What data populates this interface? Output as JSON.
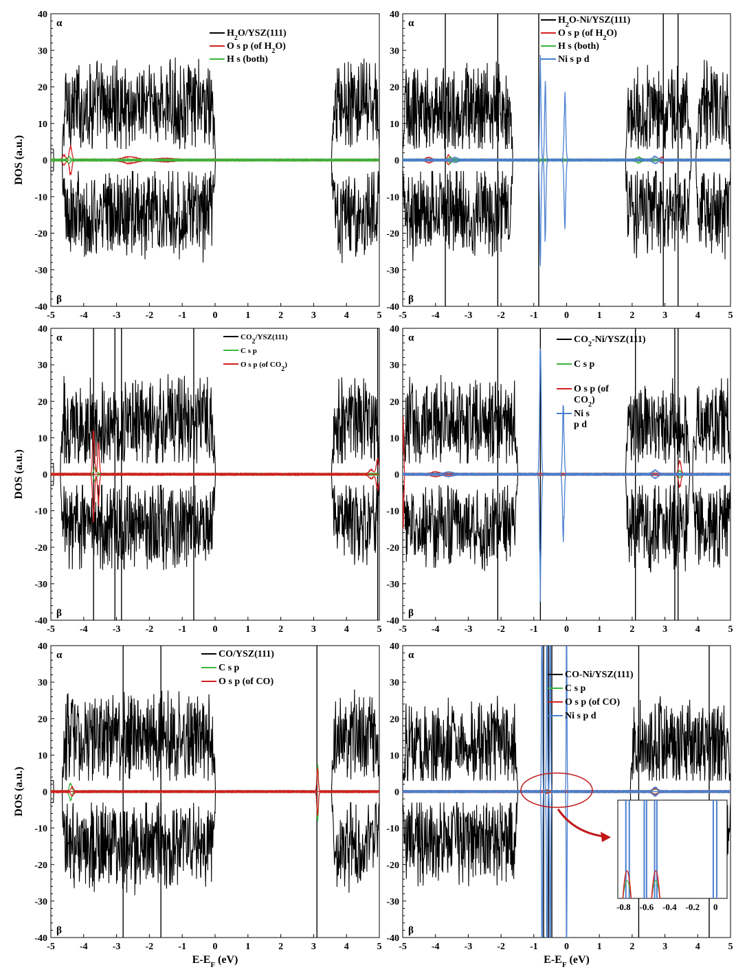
{
  "chart_data": [
    {
      "type": "line",
      "panel": "top-left",
      "xlim": [
        -5,
        5
      ],
      "ylim": [
        -40,
        40
      ],
      "x_ticks": [
        "-5",
        "-4",
        "-3",
        "-2",
        "-1",
        "0",
        "1",
        "2",
        "3",
        "4",
        "5"
      ],
      "y_ticks": [
        "-40",
        "-30",
        "-20",
        "-10",
        "0",
        "10",
        "20",
        "30",
        "40"
      ],
      "ylabel": "DOS (a.u.)",
      "xlabel": "",
      "spin_up_label": "α",
      "spin_down_label": "β",
      "legend_position": "top-right",
      "series": [
        {
          "name": "H2O/YSZ(111)",
          "color": "#000000",
          "kind": "total",
          "bands": [
            [
              -4.65,
              0.0
            ],
            [
              3.55,
              5.0
            ]
          ],
          "amp": 15
        },
        {
          "name": "O s p (of H2O)",
          "color": "#d21f1f",
          "kind": "peaks",
          "peaks": [
            [
              -4.4,
              4.3,
              0.05
            ],
            [
              -4.6,
              1.3,
              0.06
            ],
            [
              -2.6,
              0.8,
              0.25
            ],
            [
              -1.5,
              0.3,
              0.3
            ]
          ]
        },
        {
          "name": "H s (both)",
          "color": "#3cb43c",
          "kind": "peaks",
          "peaks": [
            [
              -4.45,
              0.8,
              0.05
            ]
          ]
        }
      ]
    },
    {
      "type": "line",
      "panel": "top-right",
      "xlim": [
        -5,
        5
      ],
      "ylim": [
        -40,
        40
      ],
      "x_ticks": [
        "-5",
        "-4",
        "-3",
        "-2",
        "-1",
        "0",
        "1",
        "2",
        "3",
        "4",
        "5"
      ],
      "y_ticks": [
        "-40",
        "-30",
        "-20",
        "-10",
        "0",
        "10",
        "20",
        "30",
        "40"
      ],
      "ylabel": "",
      "xlabel": "",
      "spin_up_label": "α",
      "spin_down_label": "β",
      "legend_position": "top-right",
      "series": [
        {
          "name": "H2O-Ni/YSZ(111)",
          "color": "#000000",
          "kind": "total",
          "bands": [
            [
              -5.0,
              -1.65
            ],
            [
              1.8,
              3.8
            ],
            [
              3.95,
              5.0
            ]
          ],
          "amp": 14,
          "spikes": [
            -3.7,
            -2.1,
            -0.85,
            2.95,
            3.4
          ]
        },
        {
          "name": "O s p (of H2O)",
          "color": "#d21f1f",
          "kind": "peaks",
          "peaks": [
            [
              -3.6,
              1.3,
              0.05
            ],
            [
              -4.2,
              0.6,
              0.1
            ],
            [
              2.9,
              0.6,
              0.05
            ]
          ]
        },
        {
          "name": "H s (both)",
          "color": "#3cb43c",
          "kind": "peaks",
          "peaks": [
            [
              -3.55,
              0.8,
              0.05
            ],
            [
              2.2,
              0.6,
              0.1
            ]
          ]
        },
        {
          "name": "Ni s p d",
          "color": "#4a7fcf",
          "kind": "peaks",
          "peaks": [
            [
              -0.8,
              29,
              0.03
            ],
            [
              -0.65,
              24,
              0.03
            ],
            [
              -0.05,
              20,
              0.035
            ],
            [
              -3.4,
              0.5,
              0.1
            ],
            [
              2.7,
              0.8,
              0.1
            ]
          ]
        }
      ]
    },
    {
      "type": "line",
      "panel": "middle-left",
      "xlim": [
        -5,
        5
      ],
      "ylim": [
        -40,
        40
      ],
      "x_ticks": [
        "-5",
        "-4",
        "-3",
        "-2",
        "-1",
        "0",
        "1",
        "2",
        "3",
        "4",
        "5"
      ],
      "y_ticks": [
        "-40",
        "-30",
        "-20",
        "-10",
        "0",
        "10",
        "20",
        "30",
        "40"
      ],
      "ylabel": "DOS (a.u.)",
      "xlabel": "",
      "spin_up_label": "α",
      "spin_down_label": "β",
      "legend_position": "top-right",
      "series": [
        {
          "name": "CO2/YSZ(111)",
          "color": "#000000",
          "kind": "total",
          "bands": [
            [
              -4.7,
              0.0
            ],
            [
              3.55,
              5.0
            ]
          ],
          "amp": 14,
          "spikes": [
            -3.7,
            -3.05,
            -2.85,
            -0.65,
            4.95
          ]
        },
        {
          "name": "C s p",
          "color": "#3cb43c",
          "kind": "peaks",
          "peaks": [
            [
              -3.65,
              2.0,
              0.05
            ]
          ]
        },
        {
          "name": "O s p (of CO2)",
          "color": "#d21f1f",
          "kind": "peaks",
          "peaks": [
            [
              -3.7,
              13.5,
              0.04
            ],
            [
              -3.55,
              9.5,
              0.035
            ],
            [
              4.95,
              4.5,
              0.06
            ],
            [
              4.75,
              1.2,
              0.08
            ]
          ]
        }
      ]
    },
    {
      "type": "line",
      "panel": "middle-right",
      "xlim": [
        -5,
        5
      ],
      "ylim": [
        -40,
        40
      ],
      "x_ticks": [
        "-5",
        "-4",
        "-3",
        "-2",
        "-1",
        "0",
        "1",
        "2",
        "3",
        "4",
        "5"
      ],
      "y_ticks": [
        "-40",
        "-30",
        "-20",
        "-10",
        "0",
        "10",
        "20",
        "30",
        "40"
      ],
      "ylabel": "",
      "xlabel": "",
      "spin_up_label": "α",
      "spin_down_label": "β",
      "legend_position": "top-right",
      "series": [
        {
          "name": "CO2-Ni/YSZ(111)",
          "color": "#000000",
          "kind": "total",
          "bands": [
            [
              -5.0,
              -1.5
            ],
            [
              1.8,
              3.75
            ],
            [
              3.85,
              5.0
            ]
          ],
          "amp": 14,
          "spikes": [
            -2.1,
            -0.8,
            2.1,
            3.3,
            3.4
          ]
        },
        {
          "name": "C s p",
          "color": "#3cb43c",
          "kind": "peaks",
          "peaks": [
            [
              3.45,
              0.8,
              0.05
            ]
          ]
        },
        {
          "name": "O s p (of CO2)",
          "color": "#d21f1f",
          "kind": "peaks",
          "peaks": [
            [
              -4.98,
              17,
              0.02
            ],
            [
              3.45,
              4.0,
              0.05
            ],
            [
              -4.0,
              0.5,
              0.15
            ]
          ]
        },
        {
          "name": "Ni s p d",
          "color": "#4a7fcf",
          "kind": "peaks",
          "peaks": [
            [
              -0.8,
              36,
              0.035
            ],
            [
              -0.1,
              20,
              0.035
            ],
            [
              2.7,
              1.0,
              0.1
            ],
            [
              -3.6,
              0.5,
              0.15
            ]
          ]
        }
      ]
    },
    {
      "type": "line",
      "panel": "bottom-left",
      "xlim": [
        -5,
        5
      ],
      "ylim": [
        -40,
        40
      ],
      "x_ticks": [
        "-5",
        "-4",
        "-3",
        "-2",
        "-1",
        "0",
        "1",
        "2",
        "3",
        "4",
        "5"
      ],
      "y_ticks": [
        "-40",
        "-30",
        "-20",
        "-10",
        "0",
        "10",
        "20",
        "30",
        "40"
      ],
      "ylabel": "DOS (a.u.)",
      "xlabel": "E-E",
      "xlabel_sub": "F",
      "xlabel_unit": "(eV)",
      "spin_up_label": "α",
      "spin_down_label": "β",
      "legend_position": "top-right",
      "series": [
        {
          "name": "CO/YSZ(111)",
          "color": "#000000",
          "kind": "total",
          "bands": [
            [
              -4.65,
              0.0
            ],
            [
              3.55,
              5.0
            ]
          ],
          "amp": 15,
          "spikes": [
            -2.8,
            -1.65,
            3.1
          ]
        },
        {
          "name": "C s p",
          "color": "#3cb43c",
          "kind": "peaks",
          "peaks": [
            [
              -4.4,
              2.5,
              0.05
            ],
            [
              3.12,
              9.0,
              0.03
            ]
          ]
        },
        {
          "name": "O s p (of CO)",
          "color": "#d21f1f",
          "kind": "peaks",
          "peaks": [
            [
              -4.35,
              1.2,
              0.05
            ],
            [
              3.12,
              6.5,
              0.03
            ]
          ]
        }
      ]
    },
    {
      "type": "line",
      "panel": "bottom-right",
      "xlim": [
        -5,
        5
      ],
      "ylim": [
        -40,
        40
      ],
      "x_ticks": [
        "-5",
        "-4",
        "-3",
        "-2",
        "-1",
        "0",
        "1",
        "2",
        "3",
        "4",
        "5"
      ],
      "y_ticks": [
        "-40",
        "-30",
        "-20",
        "-10",
        "0",
        "10",
        "20",
        "30",
        "40"
      ],
      "ylabel": "",
      "xlabel": "E-E",
      "xlabel_sub": "F",
      "xlabel_unit": "(eV)",
      "spin_up_label": "α",
      "spin_down_label": "β",
      "legend_position": "top-right",
      "series": [
        {
          "name": "CO-Ni/YSZ(111)",
          "color": "#000000",
          "kind": "total",
          "bands": [
            [
              -5.0,
              -1.5
            ],
            [
              1.95,
              5.0
            ]
          ],
          "amp": 13,
          "spikes": [
            -0.7,
            -0.55,
            -0.45,
            2.2,
            4.35
          ]
        },
        {
          "name": "C s p",
          "color": "#3cb43c",
          "kind": "peaks",
          "peaks": [
            [
              2.7,
              0.6,
              0.08
            ]
          ]
        },
        {
          "name": "O s p (of CO)",
          "color": "#d21f1f",
          "kind": "peaks",
          "peaks": [
            [
              2.7,
              0.8,
              0.08
            ],
            [
              -0.6,
              0.3,
              0.05
            ]
          ]
        },
        {
          "name": "Ni s p d",
          "color": "#4a7fcf",
          "kind": "peaks",
          "peaks": [
            [
              -0.75,
              60,
              0.02
            ],
            [
              -0.6,
              60,
              0.02
            ],
            [
              -0.5,
              60,
              0.02
            ],
            [
              0.0,
              60,
              0.015
            ],
            [
              2.7,
              1.0,
              0.1
            ]
          ]
        }
      ],
      "inset": {
        "xlim": [
          -0.85,
          0.1
        ],
        "x_ticks": [
          "-0.8",
          "-0.6",
          "-0.4",
          "-0.2",
          "0"
        ],
        "peaks_red": [
          [
            -0.77,
            0.28
          ],
          [
            -0.52,
            0.28
          ]
        ],
        "peaks_green": [
          [
            -0.77,
            0.18
          ],
          [
            -0.52,
            0.18
          ]
        ],
        "lines_blue": [
          -0.78,
          -0.75,
          -0.62,
          -0.6,
          -0.53,
          -0.51,
          -0.02,
          0.01
        ]
      }
    }
  ]
}
